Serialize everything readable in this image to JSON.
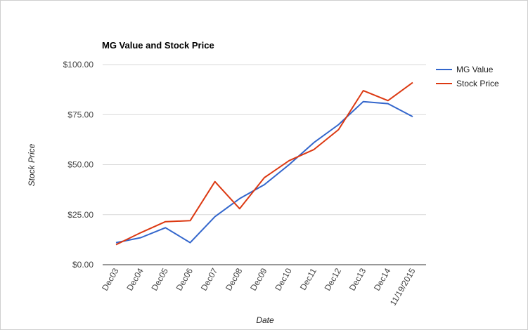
{
  "chart_data": {
    "type": "line",
    "title": "MG Value and Stock Price",
    "xlabel": "Date",
    "ylabel": "Stock Price",
    "categories": [
      "Dec03",
      "Dec04",
      "Dec05",
      "Dec06",
      "Dec07",
      "Dec08",
      "Dec09",
      "Dec10",
      "Dec11",
      "Dec12",
      "Dec13",
      "Dec14",
      "11/19/2015"
    ],
    "yticks": [
      "$0.00",
      "$25.00",
      "$50.00",
      "$75.00",
      "$100.00"
    ],
    "ylim": [
      0,
      100
    ],
    "grid": true,
    "legend_position": "right",
    "series": [
      {
        "name": "MG Value",
        "color": "#3366cc",
        "values": [
          11,
          13.5,
          18.5,
          11,
          24,
          33,
          40,
          50,
          61,
          70,
          81.5,
          80.5,
          74
        ]
      },
      {
        "name": "Stock Price",
        "color": "#dc3912",
        "values": [
          10,
          16,
          21.5,
          22,
          41.5,
          28,
          43.5,
          52,
          57.5,
          67.5,
          87,
          82,
          91
        ]
      }
    ]
  }
}
